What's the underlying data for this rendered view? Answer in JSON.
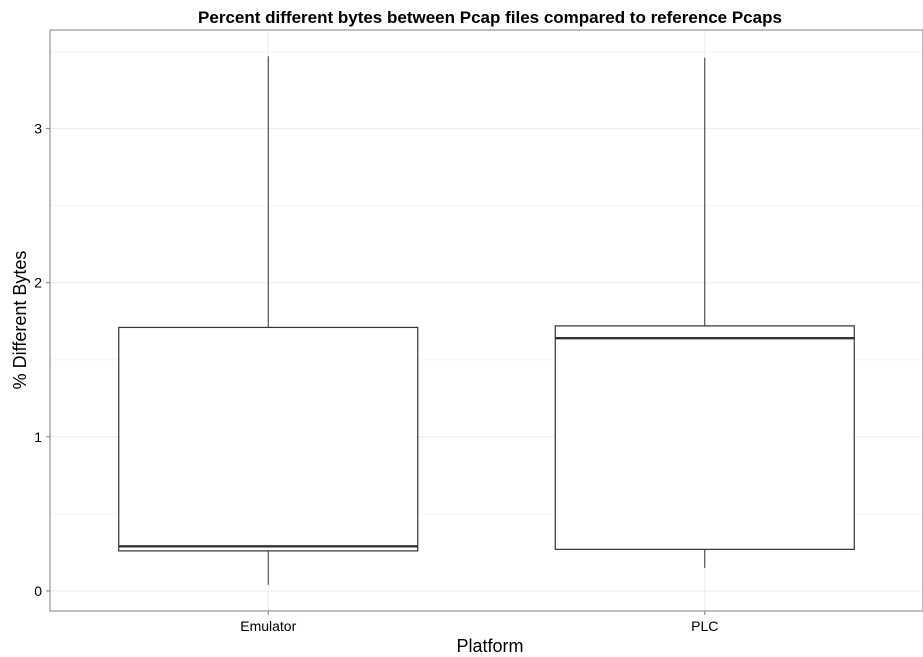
{
  "chart_data": {
    "type": "boxplot",
    "title": "Percent different bytes between Pcap files compared to reference Pcaps",
    "xlabel": "Platform",
    "ylabel": "% Different Bytes",
    "categories": [
      "Emulator",
      "PLC"
    ],
    "boxes": [
      {
        "name": "Emulator",
        "min": 0.04,
        "q1": 0.26,
        "median": 0.29,
        "q3": 1.71,
        "max": 3.47
      },
      {
        "name": "PLC",
        "min": 0.15,
        "q1": 0.27,
        "median": 1.64,
        "q3": 1.72,
        "max": 3.46
      }
    ],
    "ylim": [
      -0.13,
      3.64
    ],
    "yticks": [
      0,
      1,
      2,
      3
    ],
    "ytick_labels": [
      "0",
      "1",
      "2",
      "3"
    ],
    "grid": true,
    "legend": "none",
    "colors": {
      "box_fill": "#ffffff",
      "box_stroke": "#333333",
      "grid_major": "#ebebeb",
      "grid_minor": "#f5f5f5",
      "panel_border": "#7f7f7f",
      "text": "#000000"
    }
  }
}
